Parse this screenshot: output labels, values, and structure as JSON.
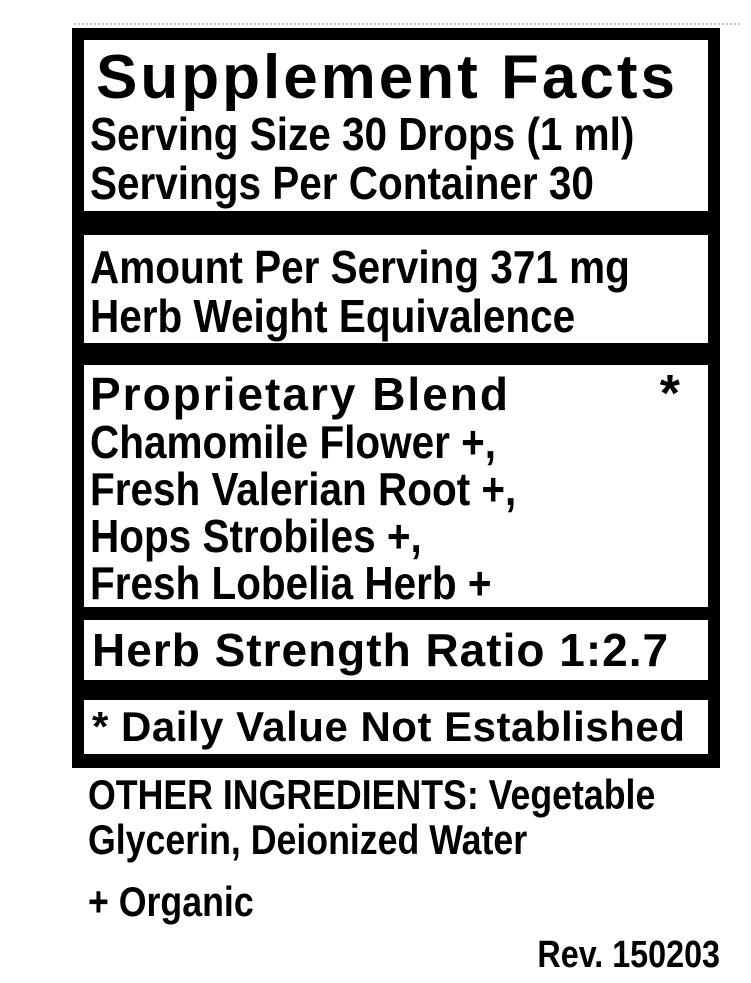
{
  "colors": {
    "ink": "#000000",
    "paper": "#ffffff"
  },
  "label": {
    "title": "Supplement Facts",
    "serving_size": "Serving Size 30 Drops (1 ml)",
    "servings_per_container": "Servings Per Container 30",
    "amount_per_serving": "Amount Per Serving 371 mg",
    "herb_weight_equivalence": "Herb Weight Equivalence",
    "blend": {
      "name": "Proprietary Blend",
      "asterisk": "*",
      "ingredients": [
        "Chamomile Flower +,",
        "Fresh Valerian Root +,",
        "Hops Strobiles +,",
        "Fresh Lobelia Herb +"
      ]
    },
    "herb_strength_ratio": "Herb Strength Ratio 1:2.7",
    "daily_value_note": "* Daily Value Not Established"
  },
  "footer": {
    "other_ingredients": "OTHER INGREDIENTS: Vegetable Glycerin, Deionized Water",
    "organic_note": "+ Organic",
    "revision": "Rev. 150203"
  }
}
